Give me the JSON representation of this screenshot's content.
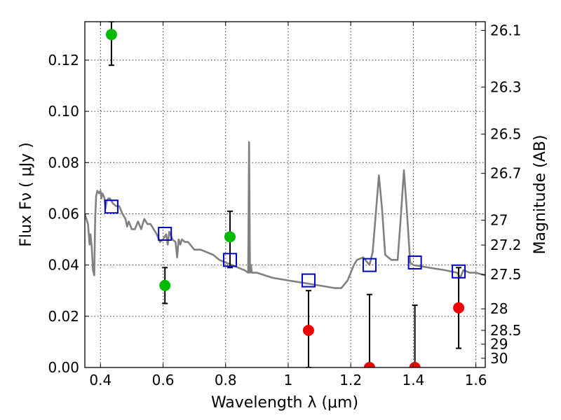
{
  "chart_data": {
    "type": "scatter",
    "xlabel": "Wavelength  λ (μm)",
    "ylabel": "Flux  Fν  ( μJy )",
    "ylabel_right": "Magnitude (AB)",
    "xlim": [
      0.35,
      1.63
    ],
    "ylim": [
      0.0,
      0.135
    ],
    "grid": true,
    "x_ticks": [
      0.4,
      0.6,
      0.8,
      1.0,
      1.2,
      1.4,
      1.6
    ],
    "x_tick_labels": [
      "0.4",
      "0.6",
      "0.8",
      "1",
      "1.2",
      "1.4",
      "1.6"
    ],
    "y_ticks": [
      0.0,
      0.02,
      0.04,
      0.06,
      0.08,
      0.1,
      0.12
    ],
    "y_tick_labels": [
      "0.00",
      "0.02",
      "0.04",
      "0.06",
      "0.08",
      "0.10",
      "0.12"
    ],
    "right_ticks": [
      {
        "label": "26.1",
        "flux": 0.1316
      },
      {
        "label": "26.3",
        "flux": 0.1095
      },
      {
        "label": "26.5",
        "flux": 0.0911
      },
      {
        "label": "26.7",
        "flux": 0.0758
      },
      {
        "label": "27",
        "flux": 0.0575
      },
      {
        "label": "27.2",
        "flux": 0.0478
      },
      {
        "label": "27.5",
        "flux": 0.0363
      },
      {
        "label": "28",
        "flux": 0.0229
      },
      {
        "label": "28.5",
        "flux": 0.0145
      },
      {
        "label": "29",
        "flux": 0.0091
      },
      {
        "label": "30",
        "flux": 0.0036
      }
    ],
    "series": [
      {
        "kind": "detection",
        "color": "#00bb00",
        "points": [
          {
            "x": 0.435,
            "y": 0.13,
            "ylo": 0.118,
            "yhi": 0.135
          },
          {
            "x": 0.606,
            "y": 0.032,
            "ylo": 0.025,
            "yhi": 0.039
          },
          {
            "x": 0.814,
            "y": 0.051,
            "ylo": 0.039,
            "yhi": 0.061
          }
        ]
      },
      {
        "kind": "non-detection",
        "color": "#ee0000",
        "points": [
          {
            "x": 1.065,
            "y": 0.0145,
            "ylo": 0.0,
            "yhi": 0.03
          },
          {
            "x": 1.26,
            "y": 0.0,
            "ylo": 0.0,
            "yhi": 0.0285
          },
          {
            "x": 1.405,
            "y": 0.0,
            "ylo": 0.0,
            "yhi": 0.0243
          },
          {
            "x": 1.545,
            "y": 0.0233,
            "ylo": 0.0075,
            "yhi": 0.039
          }
        ]
      },
      {
        "kind": "model-photometry",
        "color": "#0000cc",
        "points": [
          {
            "x": 0.435,
            "y": 0.0628
          },
          {
            "x": 0.606,
            "y": 0.0522
          },
          {
            "x": 0.814,
            "y": 0.042
          },
          {
            "x": 1.065,
            "y": 0.034
          },
          {
            "x": 1.26,
            "y": 0.04
          },
          {
            "x": 1.405,
            "y": 0.041
          },
          {
            "x": 1.545,
            "y": 0.0375
          }
        ]
      },
      {
        "kind": "model-spectrum",
        "color": "#808080",
        "x": [
          0.35,
          0.355,
          0.36,
          0.365,
          0.368,
          0.372,
          0.376,
          0.38,
          0.383,
          0.386,
          0.39,
          0.395,
          0.4,
          0.403,
          0.406,
          0.41,
          0.413,
          0.416,
          0.42,
          0.425,
          0.43,
          0.44,
          0.45,
          0.46,
          0.47,
          0.48,
          0.485,
          0.49,
          0.5,
          0.51,
          0.52,
          0.53,
          0.54,
          0.55,
          0.56,
          0.57,
          0.58,
          0.59,
          0.6,
          0.61,
          0.615,
          0.62,
          0.63,
          0.64,
          0.645,
          0.65,
          0.655,
          0.66,
          0.67,
          0.68,
          0.7,
          0.72,
          0.74,
          0.76,
          0.78,
          0.8,
          0.82,
          0.84,
          0.86,
          0.872,
          0.875,
          0.878,
          0.881,
          0.884,
          0.9,
          0.95,
          1.0,
          1.05,
          1.1,
          1.15,
          1.17,
          1.19,
          1.2,
          1.21,
          1.22,
          1.24,
          1.26,
          1.27,
          1.28,
          1.29,
          1.3,
          1.31,
          1.32,
          1.33,
          1.35,
          1.36,
          1.37,
          1.38,
          1.39,
          1.4,
          1.45,
          1.5,
          1.54,
          1.55,
          1.56,
          1.58,
          1.6,
          1.63
        ],
        "y": [
          0.06,
          0.058,
          0.056,
          0.048,
          0.052,
          0.047,
          0.038,
          0.036,
          0.058,
          0.067,
          0.069,
          0.068,
          0.069,
          0.066,
          0.068,
          0.067,
          0.066,
          0.062,
          0.065,
          0.066,
          0.066,
          0.064,
          0.063,
          0.063,
          0.06,
          0.058,
          0.055,
          0.057,
          0.054,
          0.054,
          0.057,
          0.054,
          0.058,
          0.056,
          0.056,
          0.054,
          0.052,
          0.049,
          0.05,
          0.052,
          0.048,
          0.053,
          0.05,
          0.049,
          0.043,
          0.05,
          0.048,
          0.05,
          0.049,
          0.049,
          0.046,
          0.046,
          0.045,
          0.044,
          0.042,
          0.041,
          0.04,
          0.039,
          0.038,
          0.037,
          0.088,
          0.037,
          0.04,
          0.037,
          0.037,
          0.035,
          0.034,
          0.033,
          0.032,
          0.031,
          0.031,
          0.034,
          0.037,
          0.04,
          0.042,
          0.043,
          0.04,
          0.045,
          0.06,
          0.075,
          0.062,
          0.044,
          0.043,
          0.042,
          0.042,
          0.059,
          0.077,
          0.06,
          0.041,
          0.04,
          0.039,
          0.038,
          0.037,
          0.035,
          0.038,
          0.037,
          0.037,
          0.036
        ]
      }
    ]
  }
}
